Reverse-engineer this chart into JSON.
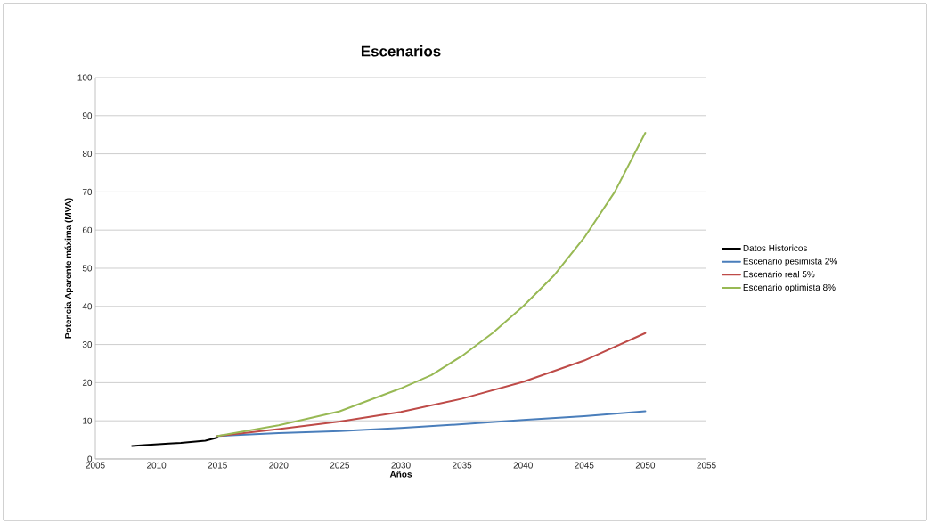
{
  "chart_data": {
    "type": "line",
    "title": "Escenarios",
    "xlabel": "Años",
    "ylabel": "Potencia Aparente máxima (MVA)",
    "xlim": [
      2005,
      2055
    ],
    "xticks": [
      2005,
      2010,
      2015,
      2020,
      2025,
      2030,
      2035,
      2040,
      2045,
      2050,
      2055
    ],
    "ylim": [
      0,
      100
    ],
    "yticks": [
      0,
      10,
      20,
      30,
      40,
      50,
      60,
      70,
      80,
      90,
      100
    ],
    "grid": "y",
    "legend": "right",
    "line_style": "solid",
    "marker": "none",
    "series": [
      {
        "name": "Datos Historicos",
        "color": "#000000",
        "x": [
          2008,
          2009,
          2010,
          2011,
          2012,
          2013,
          2014,
          2015
        ],
        "values": [
          3.4,
          3.6,
          3.8,
          4.0,
          4.2,
          4.5,
          4.8,
          5.6
        ]
      },
      {
        "name": "Escenario pesimista 2%",
        "color": "#4a7ebb",
        "x": [
          2015,
          2020,
          2025,
          2030,
          2035,
          2040,
          2045,
          2050
        ],
        "values": [
          6.0,
          6.8,
          7.3,
          8.1,
          9.1,
          10.2,
          11.2,
          12.5
        ]
      },
      {
        "name": "Escenario real 5%",
        "color": "#be4b48",
        "x": [
          2015,
          2020,
          2025,
          2030,
          2035,
          2040,
          2045,
          2050
        ],
        "values": [
          6.0,
          7.8,
          9.8,
          12.3,
          15.8,
          20.2,
          25.8,
          33.0
        ]
      },
      {
        "name": "Escenario optimista 8%",
        "color": "#98b954",
        "x": [
          2015,
          2020,
          2025,
          2030,
          2032.5,
          2035,
          2037.5,
          2040,
          2042.5,
          2045,
          2047.5,
          2050
        ],
        "values": [
          6.0,
          8.8,
          12.5,
          18.5,
          22.0,
          27.0,
          33.0,
          40.0,
          48.0,
          58.0,
          70.0,
          85.5
        ]
      }
    ]
  }
}
